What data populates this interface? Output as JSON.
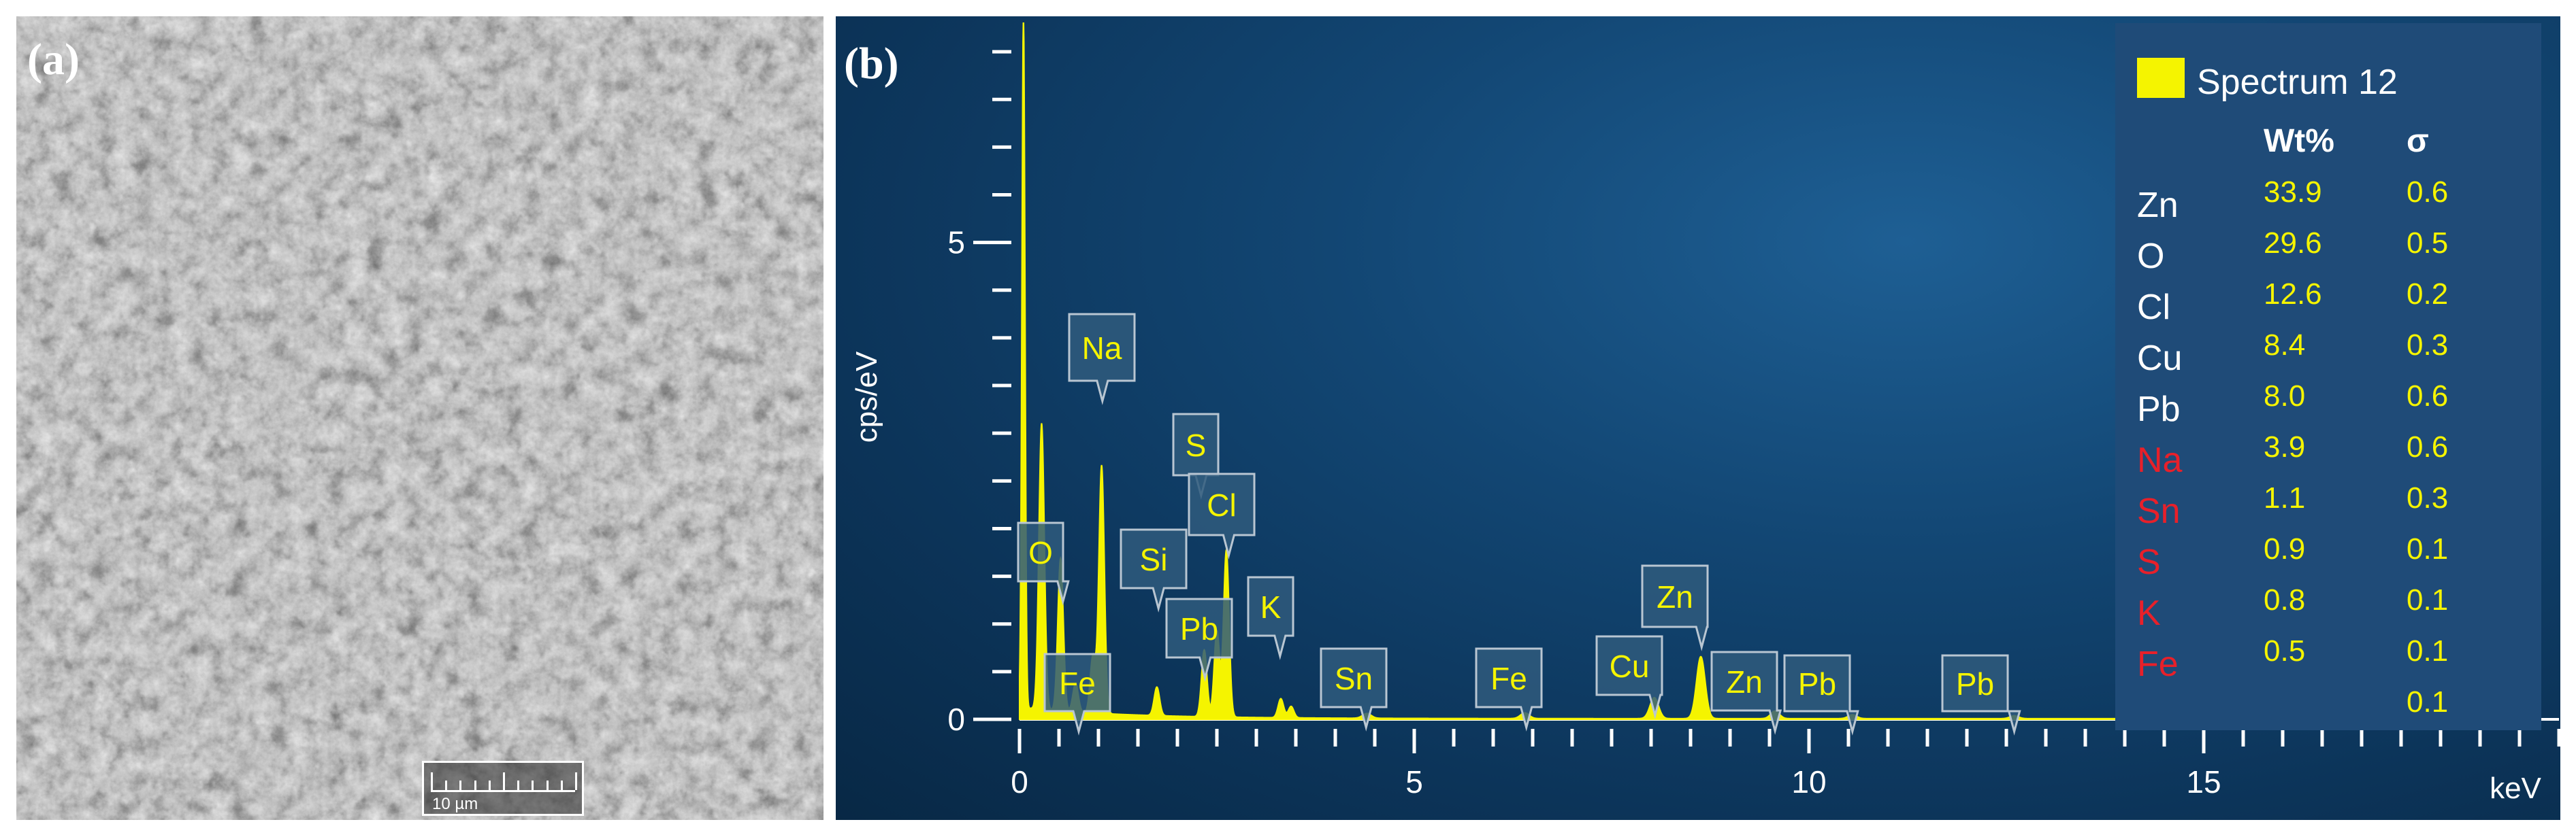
{
  "panel_a": {
    "label": "(a)",
    "scale_bar_label": "10 µm"
  },
  "panel_b": {
    "label": "(b)"
  },
  "chart_data": {
    "type": "line",
    "xlabel": "keV",
    "ylabel": "cps/eV",
    "xlim": [
      0,
      19.5
    ],
    "ylim": [
      0,
      7.3
    ],
    "x_ticks": [
      0,
      5,
      10,
      15
    ],
    "y_ticks": [
      0,
      5
    ],
    "grid": false,
    "line_color": "#f5f400",
    "series": [
      {
        "peaks": [
          {
            "x": 0.05,
            "y": 7.3
          },
          {
            "x": 0.28,
            "y": 3.0
          },
          {
            "x": 0.52,
            "y": 1.6
          },
          {
            "x": 0.71,
            "y": 0.3
          },
          {
            "x": 0.93,
            "y": 0.6
          },
          {
            "x": 1.04,
            "y": 2.6
          },
          {
            "x": 1.74,
            "y": 0.3
          },
          {
            "x": 2.34,
            "y": 0.7
          },
          {
            "x": 2.5,
            "y": 0.9
          },
          {
            "x": 2.62,
            "y": 1.75
          },
          {
            "x": 3.31,
            "y": 0.2
          },
          {
            "x": 3.44,
            "y": 0.12
          },
          {
            "x": 4.4,
            "y": 0.05
          },
          {
            "x": 6.4,
            "y": 0.06
          },
          {
            "x": 8.04,
            "y": 0.22
          },
          {
            "x": 8.63,
            "y": 0.65
          },
          {
            "x": 9.57,
            "y": 0.08
          },
          {
            "x": 10.55,
            "y": 0.04
          },
          {
            "x": 12.6,
            "y": 0.03
          }
        ]
      }
    ],
    "peak_labels": [
      {
        "text": "O",
        "x": 0.55
      },
      {
        "text": "Fe",
        "x": 0.75
      },
      {
        "text": "Na",
        "x": 1.05
      },
      {
        "text": "Si",
        "x": 1.76
      },
      {
        "text": "S",
        "x": 2.3
      },
      {
        "text": "Pb",
        "x": 2.35
      },
      {
        "text": "Cl",
        "x": 2.65
      },
      {
        "text": "K",
        "x": 3.3
      },
      {
        "text": "Sn",
        "x": 4.39
      },
      {
        "text": "Fe",
        "x": 6.42
      },
      {
        "text": "Cu",
        "x": 8.05
      },
      {
        "text": "Zn",
        "x": 8.64
      },
      {
        "text": "Zn",
        "x": 9.57
      },
      {
        "text": "Pb",
        "x": 10.55
      },
      {
        "text": "Pb",
        "x": 12.6
      }
    ],
    "legend": {
      "placement": "top-right",
      "series_name": "Spectrum 12",
      "swatch_color": "#f5f400",
      "column_wt": "Wt%",
      "column_sigma": "σ",
      "rows": [
        {
          "element": "Zn",
          "wt": "33.9",
          "sigma": "0.6",
          "color": "#ffffff"
        },
        {
          "element": "O",
          "wt": "29.6",
          "sigma": "0.5",
          "color": "#ffffff"
        },
        {
          "element": "Cl",
          "wt": "12.6",
          "sigma": "0.2",
          "color": "#ffffff"
        },
        {
          "element": "Cu",
          "wt": "8.4",
          "sigma": "0.3",
          "color": "#ffffff"
        },
        {
          "element": "Pb",
          "wt": "8.0",
          "sigma": "0.6",
          "color": "#ffffff"
        },
        {
          "element": "Na",
          "wt": "3.9",
          "sigma": "0.6",
          "color": "#e8202a"
        },
        {
          "element": "Sn",
          "wt": "1.1",
          "sigma": "0.3",
          "color": "#e8202a"
        },
        {
          "element": "S",
          "wt": "0.9",
          "sigma": "0.1",
          "color": "#e8202a"
        },
        {
          "element": "K",
          "wt": "0.8",
          "sigma": "0.1",
          "color": "#e8202a"
        },
        {
          "element": "Fe",
          "wt": "0.5",
          "sigma": "0.1",
          "color": "#e8202a"
        },
        {
          "element": "",
          "wt": "",
          "sigma": "0.1",
          "color": "#ffffff"
        }
      ]
    }
  }
}
